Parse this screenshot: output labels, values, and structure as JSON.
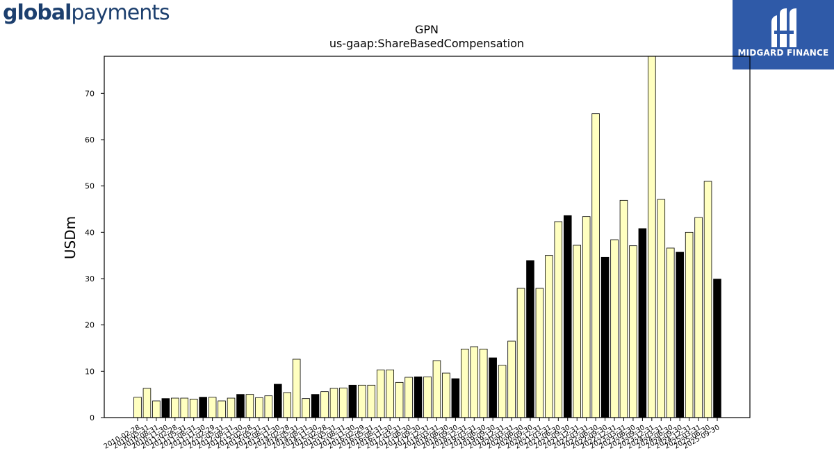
{
  "header": {
    "left_logo_bold": "global",
    "left_logo_light": "payments",
    "right_logo_text": "MIDGARD FINANCE",
    "right_logo_icon": "midgard-m-icon"
  },
  "colors": {
    "bar_default": "#ffffc0",
    "bar_highlight": "#000000",
    "bar_stroke": "#000000",
    "right_logo_bg": "#2f5aa8",
    "left_logo": "#1c3f6e"
  },
  "chart_data": {
    "type": "bar",
    "title": "GPN",
    "subtitle": "us-gaap:ShareBasedCompensation",
    "xlabel": "",
    "ylabel": "USDm",
    "ylim": [
      0,
      78
    ],
    "yticks": [
      0,
      10,
      20,
      30,
      40,
      50,
      60,
      70
    ],
    "grid": false,
    "categories": [
      "2010-02-28",
      "2010-05-31",
      "2010-08-31",
      "2010-11-30",
      "2011-02-28",
      "2011-05-31",
      "2011-08-31",
      "2011-11-30",
      "2012-02-29",
      "2012-05-31",
      "2012-08-31",
      "2012-11-30",
      "2013-02-28",
      "2013-05-31",
      "2013-08-31",
      "2013-11-30",
      "2014-02-28",
      "2014-05-31",
      "2014-08-31",
      "2014-11-30",
      "2015-02-28",
      "2015-05-31",
      "2015-08-31",
      "2015-11-30",
      "2016-02-29",
      "2016-05-31",
      "2016-08-31",
      "2016-11-30",
      "2017-03-31",
      "2017-06-30",
      "2017-09-30",
      "2017-12-31",
      "2018-03-31",
      "2018-06-30",
      "2018-09-30",
      "2018-12-31",
      "2019-03-31",
      "2019-06-30",
      "2019-09-30",
      "2019-12-31",
      "2020-03-31",
      "2020-06-30",
      "2020-09-30",
      "2020-12-31",
      "2021-03-31",
      "2021-06-30",
      "2021-09-30",
      "2021-12-31",
      "2022-03-31",
      "2022-06-30",
      "2022-09-30",
      "2022-12-31",
      "2023-03-31",
      "2023-06-30",
      "2023-09-30",
      "2023-12-31",
      "2024-03-31",
      "2024-06-30",
      "2024-09-30",
      "2024-12-31",
      "2025-03-31",
      "2025-06-30",
      "2025-09-30"
    ],
    "x_tick_labels_visible": [
      "2010-02-28",
      "2010-05-31",
      "2010-08-31",
      "2010-11-30",
      "2011-02-28",
      "2011-05-31",
      "2011-08-31",
      "2011-11-30",
      "2012-02-29",
      "2012-05-31",
      "2012-08-31",
      "2012-11-30",
      "2013-02-28",
      "2013-05-31",
      "2013-08-31",
      "2013-11-30",
      "2014-02-28",
      "2014-05-31",
      "2014-08-31",
      "2014-11-30",
      "2015-02-28",
      "2015-05-31",
      "2015-08-31",
      "2015-11-30",
      "2016-02-29",
      "2016-05-31",
      "2016-08-31",
      "2016-11-30",
      "2017-03-31",
      "2017-06-30",
      "2017-09-30",
      "2017-12-31",
      "2018-03-31",
      "2018-06-30",
      "2018-09-30",
      "2018-12-31",
      "2019-03-31",
      "2019-06-30",
      "2019-09-30",
      "2019-12-31",
      "2020-03-31",
      "2020-06-30",
      "2020-09-30",
      "2020-12-31",
      "2021-03-31",
      "2021-06-30",
      "2021-09-30",
      "2021-12-31",
      "2022-03-31",
      "2022-06-30",
      "2022-09-30",
      "2022-12-31",
      "2023-03-31",
      "2023-06-30",
      "2023-09-30",
      "2023-12-31",
      "2024-03-31",
      "2024-06-30",
      "2024-09-30",
      "2024-12-31",
      "2025-03-31",
      "2025-06-30",
      "2025-09-30"
    ],
    "values": [
      4.4,
      6.3,
      3.6,
      4.1,
      4.2,
      4.2,
      4.0,
      4.4,
      4.4,
      3.6,
      4.2,
      5.0,
      5.0,
      4.3,
      4.7,
      7.2,
      5.4,
      12.6,
      4.1,
      5.0,
      5.6,
      6.3,
      6.4,
      7.0,
      7.0,
      7.0,
      10.3,
      10.3,
      7.6,
      8.7,
      8.8,
      8.8,
      12.3,
      9.6,
      8.4,
      14.8,
      15.3,
      14.8,
      12.9,
      11.3,
      16.5,
      27.9,
      33.9,
      27.9,
      35.0,
      42.3,
      43.6,
      37.2,
      43.4,
      65.6,
      34.6,
      38.4,
      46.9,
      37.1,
      40.8,
      78.0,
      47.1,
      36.6,
      35.7,
      40.0,
      43.2,
      51.0,
      29.9
    ],
    "highlight": [
      false,
      false,
      false,
      true,
      false,
      false,
      false,
      true,
      false,
      false,
      false,
      true,
      false,
      false,
      false,
      true,
      false,
      false,
      false,
      true,
      false,
      false,
      false,
      true,
      false,
      false,
      false,
      false,
      false,
      false,
      true,
      false,
      false,
      false,
      true,
      false,
      false,
      false,
      true,
      false,
      false,
      false,
      true,
      false,
      false,
      false,
      true,
      false,
      false,
      false,
      true,
      false,
      false,
      false,
      true,
      false,
      false,
      false,
      true,
      false,
      false,
      false,
      true
    ]
  }
}
